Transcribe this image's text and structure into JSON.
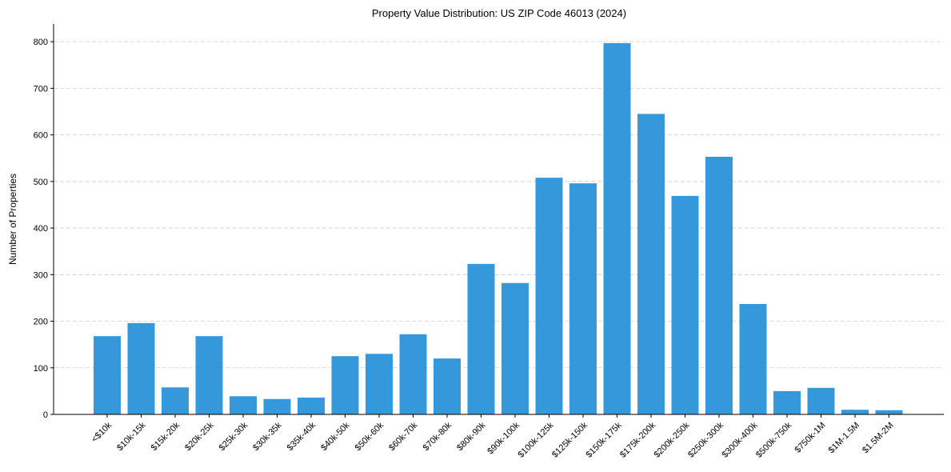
{
  "chart_data": {
    "type": "bar",
    "title": "Property Value Distribution: US ZIP Code 46013 (2024)",
    "xlabel": "",
    "ylabel": "Number of Properties",
    "ylim": [
      0,
      838
    ],
    "yticks": [
      0,
      100,
      200,
      300,
      400,
      500,
      600,
      700,
      800
    ],
    "grid": "y, dashed",
    "bar_color": "#3498db",
    "categories": [
      "<$10k",
      "$10k-15k",
      "$15k-20k",
      "$20k-25k",
      "$25k-30k",
      "$30k-35k",
      "$35k-40k",
      "$40k-50k",
      "$50k-60k",
      "$60k-70k",
      "$70k-80k",
      "$80k-90k",
      "$90k-100k",
      "$100k-125k",
      "$125k-150k",
      "$150k-175k",
      "$175k-200k",
      "$200k-250k",
      "$250k-300k",
      "$300k-400k",
      "$500k-750k",
      "$750k-1M",
      "$1M-1.5M",
      "$1.5M-2M"
    ],
    "values": [
      168,
      196,
      58,
      168,
      39,
      33,
      36,
      125,
      130,
      172,
      120,
      323,
      282,
      508,
      496,
      797,
      645,
      469,
      553,
      237,
      50,
      57,
      10,
      9
    ]
  }
}
